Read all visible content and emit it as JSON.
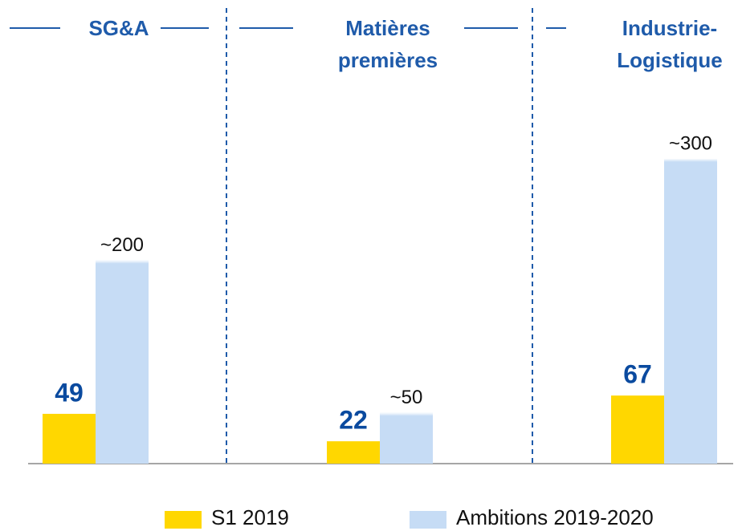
{
  "chart_data": {
    "type": "bar",
    "categories": [
      "SG&A",
      "Matières premières",
      "Industrie-Logistique"
    ],
    "series": [
      {
        "name": "S1 2019",
        "color": "#FFD700",
        "values": [
          49,
          22,
          67
        ]
      },
      {
        "name": "Ambitions 2019-2020",
        "color": "#C6DCF5",
        "values": [
          200,
          50,
          300
        ],
        "value_labels": [
          "~200",
          "~50",
          "~300"
        ]
      }
    ],
    "legend": "bottom"
  }
}
